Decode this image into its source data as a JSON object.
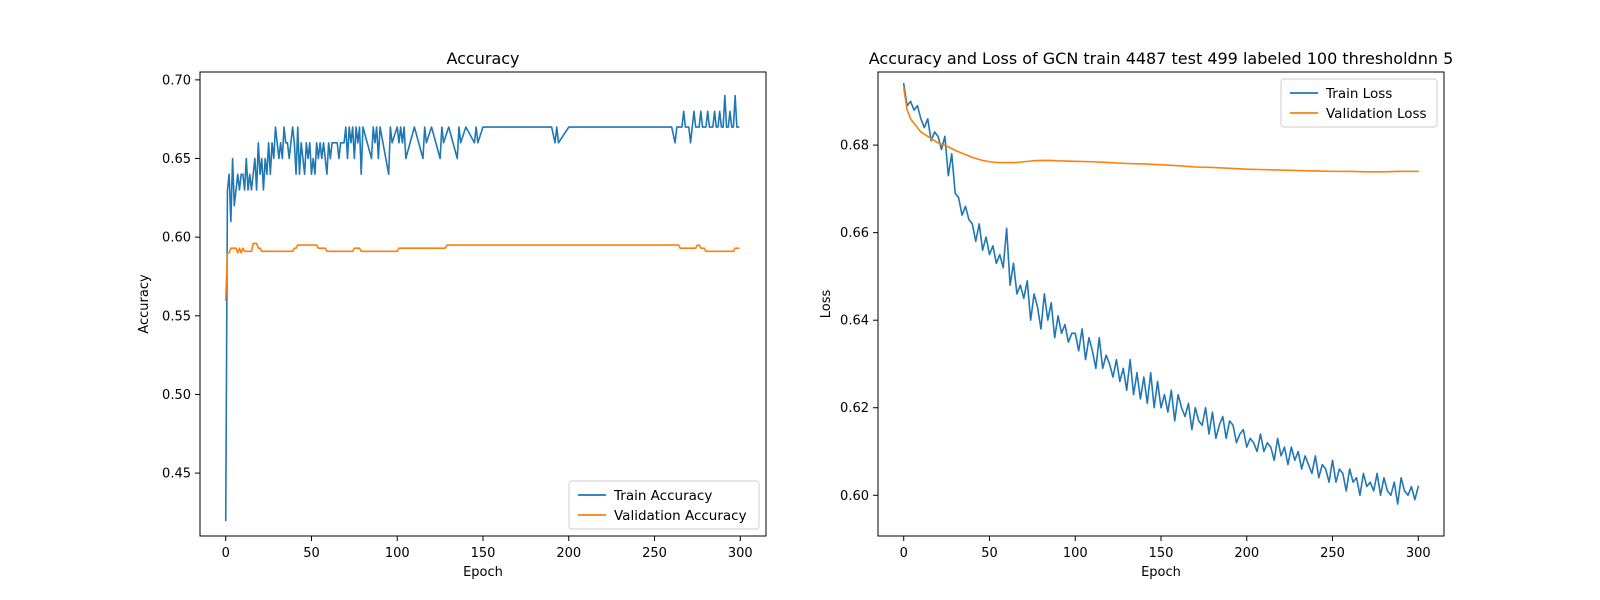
{
  "chart_data": [
    {
      "type": "line",
      "title": "Accuracy",
      "xlabel": "Epoch",
      "ylabel": "Accuracy",
      "xlim": [
        -15,
        315
      ],
      "ylim": [
        0.41,
        0.705
      ],
      "xticks": [
        0,
        50,
        100,
        150,
        200,
        250,
        300
      ],
      "yticks": [
        0.45,
        0.5,
        0.55,
        0.6,
        0.65,
        0.7
      ],
      "ytick_labels": [
        "0.45",
        "0.50",
        "0.55",
        "0.60",
        "0.65",
        "0.70"
      ],
      "grid": false,
      "legend": "lower-right",
      "series": [
        {
          "name": "Train Accuracy",
          "color": "#1f77b4",
          "x": [
            0,
            1,
            2,
            3,
            4,
            5,
            6,
            7,
            8,
            9,
            10,
            11,
            12,
            13,
            14,
            15,
            16,
            17,
            18,
            19,
            20,
            21,
            22,
            23,
            24,
            25,
            26,
            27,
            28,
            29,
            30,
            31,
            32,
            33,
            34,
            35,
            36,
            37,
            38,
            39,
            40,
            41,
            42,
            43,
            44,
            45,
            46,
            47,
            48,
            49,
            50,
            51,
            52,
            53,
            54,
            55,
            56,
            57,
            58,
            59,
            60,
            61,
            62,
            63,
            64,
            65,
            66,
            67,
            68,
            69,
            70,
            71,
            72,
            73,
            74,
            75,
            76,
            77,
            78,
            79,
            80,
            85,
            86,
            87,
            88,
            89,
            90,
            95,
            96,
            97,
            100,
            101,
            102,
            103,
            104,
            105,
            110,
            115,
            116,
            117,
            120,
            125,
            126,
            127,
            130,
            135,
            136,
            137,
            140,
            145,
            146,
            147,
            150,
            160,
            170,
            180,
            190,
            192,
            193,
            194,
            200,
            210,
            220,
            230,
            240,
            250,
            260,
            262,
            263,
            264,
            265,
            266,
            267,
            268,
            269,
            270,
            271,
            272,
            273,
            274,
            275,
            276,
            277,
            278,
            279,
            280,
            281,
            282,
            283,
            284,
            285,
            286,
            287,
            288,
            289,
            290,
            291,
            292,
            293,
            294,
            295,
            296,
            297,
            298,
            299
          ],
          "values": [
            0.42,
            0.63,
            0.64,
            0.61,
            0.65,
            0.62,
            0.63,
            0.64,
            0.63,
            0.64,
            0.64,
            0.63,
            0.65,
            0.63,
            0.64,
            0.63,
            0.64,
            0.65,
            0.63,
            0.66,
            0.64,
            0.65,
            0.63,
            0.65,
            0.64,
            0.66,
            0.64,
            0.66,
            0.65,
            0.67,
            0.66,
            0.65,
            0.66,
            0.65,
            0.67,
            0.66,
            0.66,
            0.65,
            0.66,
            0.67,
            0.66,
            0.64,
            0.67,
            0.64,
            0.66,
            0.65,
            0.64,
            0.66,
            0.65,
            0.66,
            0.64,
            0.65,
            0.64,
            0.66,
            0.65,
            0.66,
            0.65,
            0.66,
            0.65,
            0.64,
            0.66,
            0.65,
            0.66,
            0.66,
            0.66,
            0.66,
            0.65,
            0.66,
            0.66,
            0.66,
            0.67,
            0.65,
            0.67,
            0.66,
            0.67,
            0.65,
            0.67,
            0.66,
            0.67,
            0.64,
            0.67,
            0.65,
            0.67,
            0.66,
            0.67,
            0.65,
            0.67,
            0.64,
            0.67,
            0.66,
            0.67,
            0.66,
            0.67,
            0.66,
            0.67,
            0.65,
            0.67,
            0.65,
            0.67,
            0.66,
            0.67,
            0.65,
            0.67,
            0.66,
            0.67,
            0.65,
            0.67,
            0.66,
            0.67,
            0.66,
            0.67,
            0.66,
            0.67,
            0.67,
            0.67,
            0.67,
            0.67,
            0.66,
            0.67,
            0.66,
            0.67,
            0.67,
            0.67,
            0.67,
            0.67,
            0.67,
            0.67,
            0.66,
            0.67,
            0.67,
            0.67,
            0.67,
            0.68,
            0.67,
            0.67,
            0.67,
            0.66,
            0.67,
            0.68,
            0.67,
            0.67,
            0.67,
            0.68,
            0.67,
            0.67,
            0.67,
            0.68,
            0.67,
            0.67,
            0.67,
            0.68,
            0.67,
            0.67,
            0.68,
            0.67,
            0.67,
            0.69,
            0.67,
            0.67,
            0.68,
            0.67,
            0.67,
            0.69,
            0.67,
            0.67
          ]
        },
        {
          "name": "Validation Accuracy",
          "color": "#ff7f0e",
          "x": [
            0,
            1,
            2,
            3,
            4,
            5,
            6,
            7,
            8,
            9,
            10,
            11,
            12,
            13,
            14,
            15,
            16,
            17,
            18,
            19,
            20,
            21,
            22,
            25,
            30,
            35,
            38,
            39,
            40,
            41,
            42,
            45,
            50,
            52,
            53,
            54,
            55,
            56,
            57,
            58,
            59,
            60,
            62,
            65,
            70,
            74,
            75,
            76,
            77,
            78,
            79,
            80,
            85,
            90,
            95,
            100,
            101,
            102,
            103,
            110,
            120,
            125,
            128,
            129,
            130,
            140,
            160,
            180,
            200,
            220,
            240,
            250,
            260,
            264,
            265,
            266,
            267,
            268,
            269,
            270,
            272,
            273,
            274,
            275,
            276,
            277,
            278,
            279,
            280,
            285,
            290,
            295,
            296,
            297,
            298,
            299
          ],
          "values": [
            0.56,
            0.59,
            0.59,
            0.593,
            0.593,
            0.593,
            0.593,
            0.59,
            0.593,
            0.59,
            0.593,
            0.591,
            0.591,
            0.591,
            0.591,
            0.591,
            0.596,
            0.596,
            0.596,
            0.593,
            0.593,
            0.591,
            0.591,
            0.591,
            0.591,
            0.591,
            0.591,
            0.591,
            0.593,
            0.593,
            0.595,
            0.595,
            0.595,
            0.595,
            0.595,
            0.593,
            0.593,
            0.593,
            0.593,
            0.593,
            0.591,
            0.591,
            0.591,
            0.591,
            0.591,
            0.591,
            0.593,
            0.593,
            0.593,
            0.593,
            0.591,
            0.591,
            0.591,
            0.591,
            0.591,
            0.591,
            0.593,
            0.593,
            0.593,
            0.593,
            0.593,
            0.593,
            0.593,
            0.595,
            0.595,
            0.595,
            0.595,
            0.595,
            0.595,
            0.595,
            0.595,
            0.595,
            0.595,
            0.595,
            0.593,
            0.593,
            0.593,
            0.593,
            0.593,
            0.593,
            0.593,
            0.593,
            0.593,
            0.595,
            0.595,
            0.593,
            0.593,
            0.593,
            0.591,
            0.591,
            0.591,
            0.591,
            0.591,
            0.593,
            0.593,
            0.593
          ]
        }
      ]
    },
    {
      "type": "line",
      "title": "Accuracy and Loss of GCN train 4487 test 499 labeled 100 thresholdnn 5",
      "xlabel": "Epoch",
      "ylabel": "Loss",
      "xlim": [
        -15,
        315
      ],
      "ylim": [
        0.5907,
        0.6967
      ],
      "xticks": [
        0,
        50,
        100,
        150,
        200,
        250,
        300
      ],
      "yticks": [
        0.6,
        0.62,
        0.64,
        0.66,
        0.68
      ],
      "ytick_labels": [
        "0.60",
        "0.62",
        "0.64",
        "0.66",
        "0.68"
      ],
      "grid": false,
      "legend": "upper-right",
      "series": [
        {
          "name": "Train Loss",
          "color": "#1f77b4",
          "x": [
            0,
            2,
            4,
            6,
            8,
            10,
            12,
            14,
            16,
            18,
            20,
            22,
            24,
            26,
            28,
            30,
            32,
            34,
            36,
            38,
            40,
            42,
            44,
            46,
            48,
            50,
            52,
            54,
            56,
            58,
            60,
            62,
            64,
            66,
            68,
            70,
            72,
            74,
            76,
            78,
            80,
            82,
            84,
            86,
            88,
            90,
            92,
            94,
            96,
            98,
            100,
            102,
            104,
            106,
            108,
            110,
            112,
            114,
            116,
            118,
            120,
            122,
            124,
            126,
            128,
            130,
            132,
            134,
            136,
            138,
            140,
            142,
            144,
            146,
            148,
            150,
            152,
            154,
            156,
            158,
            160,
            162,
            164,
            166,
            168,
            170,
            172,
            174,
            176,
            178,
            180,
            182,
            184,
            186,
            188,
            190,
            192,
            194,
            196,
            198,
            200,
            202,
            204,
            206,
            208,
            210,
            212,
            214,
            216,
            218,
            220,
            222,
            224,
            226,
            228,
            230,
            232,
            234,
            236,
            238,
            240,
            242,
            244,
            246,
            248,
            250,
            252,
            254,
            256,
            258,
            260,
            262,
            264,
            266,
            268,
            270,
            272,
            274,
            276,
            278,
            280,
            282,
            284,
            286,
            288,
            290,
            292,
            294,
            296,
            298,
            300
          ],
          "values": [
            0.694,
            0.689,
            0.69,
            0.688,
            0.689,
            0.686,
            0.684,
            0.686,
            0.681,
            0.683,
            0.682,
            0.679,
            0.682,
            0.673,
            0.678,
            0.669,
            0.668,
            0.664,
            0.666,
            0.663,
            0.662,
            0.658,
            0.662,
            0.656,
            0.659,
            0.655,
            0.657,
            0.653,
            0.655,
            0.652,
            0.661,
            0.648,
            0.653,
            0.646,
            0.648,
            0.645,
            0.649,
            0.64,
            0.646,
            0.643,
            0.638,
            0.646,
            0.64,
            0.644,
            0.636,
            0.641,
            0.637,
            0.639,
            0.635,
            0.637,
            0.637,
            0.633,
            0.638,
            0.631,
            0.636,
            0.633,
            0.629,
            0.636,
            0.629,
            0.632,
            0.63,
            0.627,
            0.631,
            0.626,
            0.629,
            0.624,
            0.631,
            0.623,
            0.628,
            0.622,
            0.627,
            0.621,
            0.628,
            0.62,
            0.626,
            0.62,
            0.623,
            0.619,
            0.624,
            0.617,
            0.623,
            0.62,
            0.618,
            0.621,
            0.615,
            0.62,
            0.617,
            0.616,
            0.62,
            0.614,
            0.619,
            0.613,
            0.616,
            0.618,
            0.613,
            0.617,
            0.616,
            0.612,
            0.614,
            0.615,
            0.611,
            0.613,
            0.612,
            0.61,
            0.614,
            0.61,
            0.612,
            0.611,
            0.608,
            0.613,
            0.609,
            0.611,
            0.607,
            0.611,
            0.608,
            0.61,
            0.606,
            0.609,
            0.607,
            0.605,
            0.609,
            0.604,
            0.607,
            0.606,
            0.603,
            0.608,
            0.603,
            0.606,
            0.605,
            0.601,
            0.606,
            0.603,
            0.604,
            0.6,
            0.605,
            0.602,
            0.603,
            0.601,
            0.605,
            0.6,
            0.604,
            0.601,
            0.6,
            0.603,
            0.598,
            0.604,
            0.601,
            0.6,
            0.602,
            0.599,
            0.602
          ]
        },
        {
          "name": "Validation Loss",
          "color": "#ff7f0e",
          "x": [
            0,
            2,
            4,
            6,
            8,
            10,
            12,
            14,
            16,
            18,
            20,
            25,
            30,
            35,
            40,
            45,
            50,
            55,
            60,
            65,
            70,
            75,
            80,
            85,
            90,
            100,
            110,
            120,
            130,
            140,
            150,
            160,
            170,
            180,
            190,
            200,
            210,
            220,
            230,
            240,
            250,
            260,
            270,
            280,
            290,
            300
          ],
          "values": [
            0.693,
            0.688,
            0.686,
            0.685,
            0.684,
            0.683,
            0.6825,
            0.682,
            0.6815,
            0.681,
            0.6805,
            0.6798,
            0.6788,
            0.678,
            0.6772,
            0.6766,
            0.6762,
            0.676,
            0.676,
            0.676,
            0.6762,
            0.6764,
            0.6765,
            0.6765,
            0.6764,
            0.6763,
            0.6762,
            0.676,
            0.6758,
            0.6757,
            0.6755,
            0.6753,
            0.675,
            0.6749,
            0.6747,
            0.6745,
            0.6744,
            0.6743,
            0.6742,
            0.6741,
            0.674,
            0.674,
            0.6739,
            0.6739,
            0.674,
            0.674
          ]
        }
      ]
    }
  ]
}
